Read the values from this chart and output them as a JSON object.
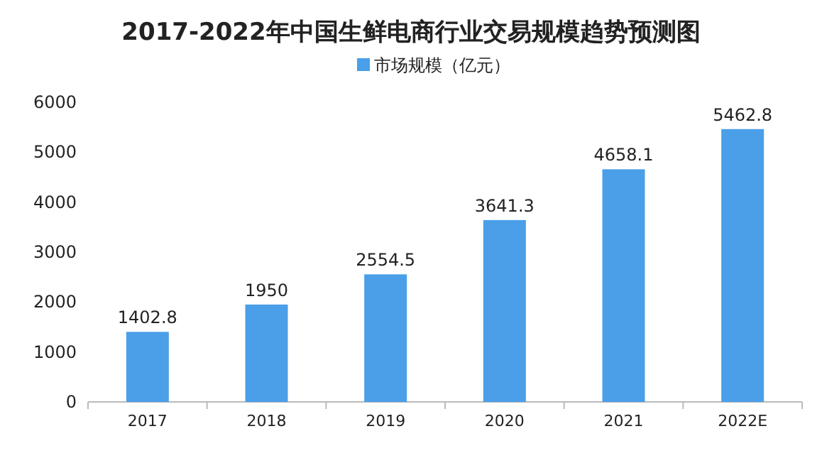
{
  "chart_data": {
    "type": "bar",
    "title": "2017-2022年中国生鲜电商行业交易规模趋势预测图",
    "categories": [
      "2017",
      "2018",
      "2019",
      "2020",
      "2021",
      "2022E"
    ],
    "series": [
      {
        "name": "市场规模（亿元）",
        "color": "#4a9fe8",
        "values": [
          1402.8,
          1950,
          2554.5,
          3641.3,
          4658.1,
          5462.8
        ]
      }
    ],
    "ylim": [
      0,
      6000
    ],
    "yticks": [
      0,
      1000,
      2000,
      3000,
      4000,
      5000,
      6000
    ],
    "data_labels": true,
    "legend": "top",
    "grid": false
  }
}
